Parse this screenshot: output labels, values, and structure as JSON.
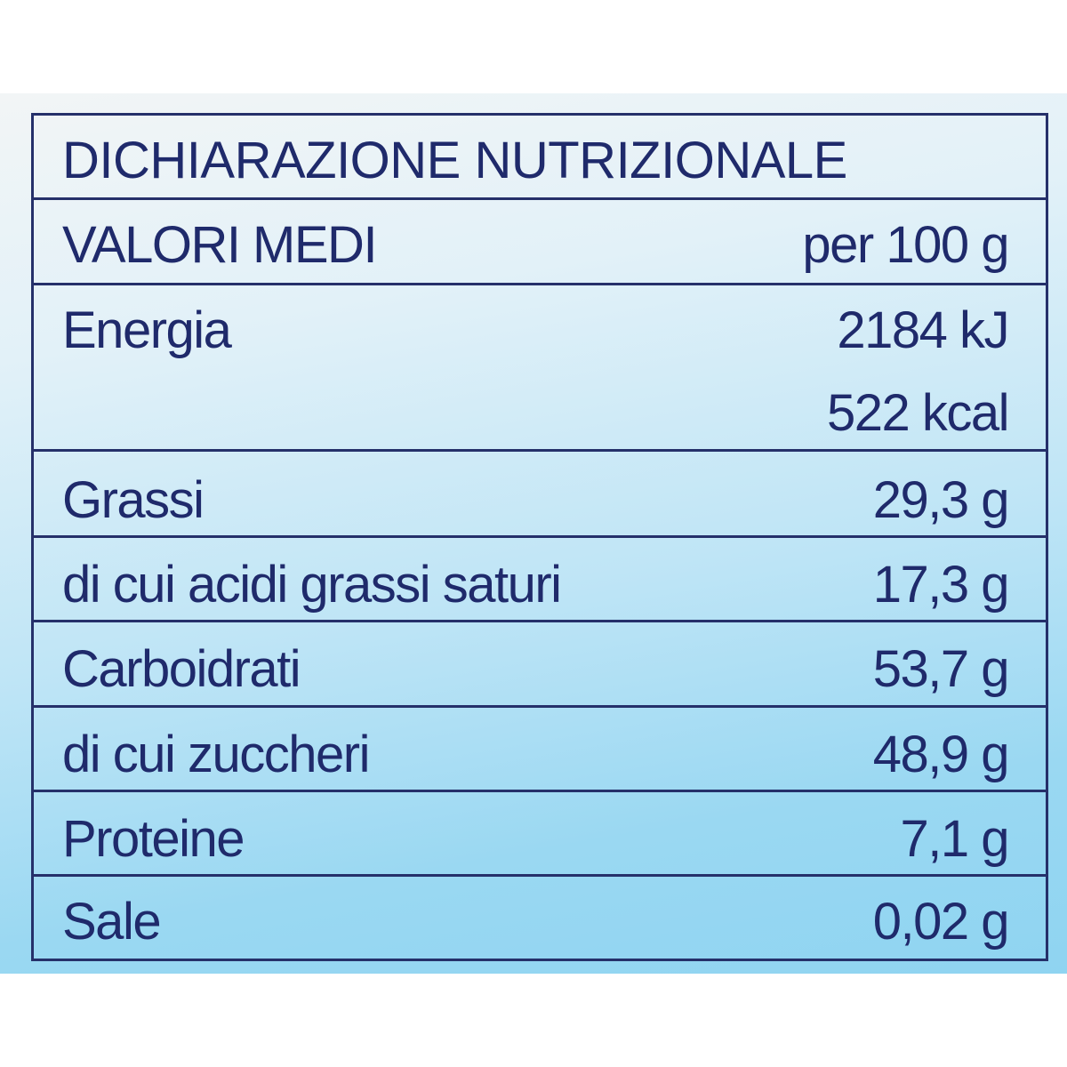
{
  "label": {
    "title": "DICHIARAZIONE NUTRIZIONALE",
    "header": {
      "label": "VALORI MEDI",
      "value": "per 100 g"
    },
    "energy": {
      "label": "Energia",
      "kj": "2184 kJ",
      "kcal": "522 kcal"
    },
    "rows": [
      {
        "label": "Grassi",
        "value": "29,3 g"
      },
      {
        "label": "di cui acidi grassi saturi",
        "value": "17,3 g"
      },
      {
        "label": "Carboidrati",
        "value": "53,7 g"
      },
      {
        "label": "di cui zuccheri",
        "value": "48,9 g"
      },
      {
        "label": "Proteine",
        "value": "7,1 g"
      },
      {
        "label": "Sale",
        "value": "0,02 g"
      }
    ]
  },
  "colors": {
    "text": "#1f2a6b",
    "border": "#25306a",
    "background_light": "#f2f5f6",
    "background_blue": "#8fd4f1"
  }
}
